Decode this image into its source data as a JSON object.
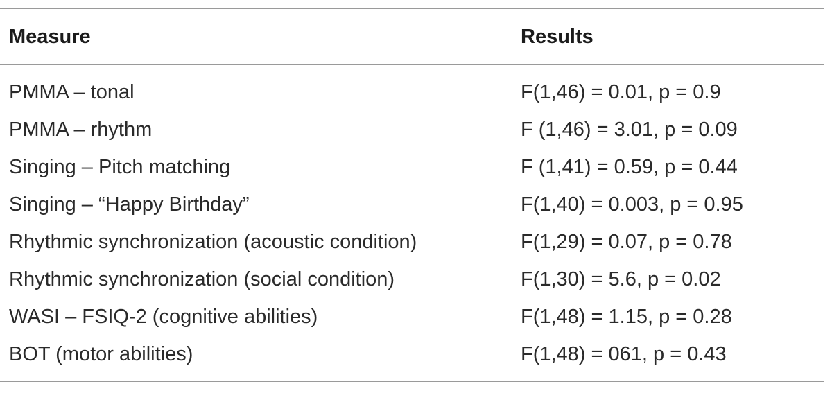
{
  "table": {
    "headers": {
      "measure": "Measure",
      "results": "Results"
    },
    "rows": [
      {
        "measure": "PMMA – tonal",
        "results": "F(1,46) = 0.01, p = 0.9"
      },
      {
        "measure": "PMMA – rhythm",
        "results": "F (1,46) = 3.01, p = 0.09"
      },
      {
        "measure": "Singing – Pitch matching",
        "results": "F (1,41) = 0.59, p = 0.44"
      },
      {
        "measure": "Singing – “Happy Birthday”",
        "results": "F(1,40) = 0.003, p = 0.95"
      },
      {
        "measure": "Rhythmic synchronization (acoustic condition)",
        "results": "F(1,29) = 0.07, p = 0.78"
      },
      {
        "measure": "Rhythmic synchronization (social condition)",
        "results": "F(1,30) = 5.6, p = 0.02"
      },
      {
        "measure": "WASI – FSIQ-2 (cognitive abilities)",
        "results": "F(1,48) = 1.15, p = 0.28"
      },
      {
        "measure": "BOT (motor abilities)",
        "results": "F(1,48) = 061, p = 0.43"
      }
    ]
  }
}
